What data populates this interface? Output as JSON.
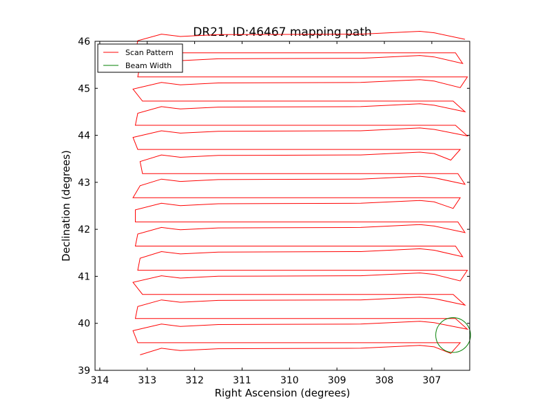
{
  "chart_data": {
    "type": "line",
    "title": "DR21, ID:46467 mapping path",
    "xlabel": "Right Ascension (degrees)",
    "ylabel": "Declination (degrees)",
    "xlim": [
      314.1,
      306.2
    ],
    "ylim": [
      39,
      46
    ],
    "x_inverted": true,
    "xticks": [
      314,
      313,
      312,
      311,
      310,
      309,
      308,
      307
    ],
    "xtick_labels": [
      "314",
      "313",
      "312",
      "311",
      "310",
      "309",
      "308",
      "307"
    ],
    "yticks": [
      39,
      40,
      41,
      42,
      43,
      44,
      45,
      46
    ],
    "ytick_labels": [
      "39",
      "40",
      "41",
      "42",
      "43",
      "44",
      "45",
      "46"
    ],
    "grid": false,
    "legend_position": "top-left",
    "scan_rows": {
      "dec_start": 39.33,
      "dec_step": 0.257,
      "count": 27,
      "west_edge_ra": [
        313.15,
        313.2,
        313.3,
        313.25,
        313.2,
        313.1,
        313.3,
        313.2,
        313.15,
        313.25,
        313.2,
        313.25,
        313.25,
        313.3,
        313.15,
        313.1
      ],
      "east_edge_ra": [
        306.6,
        306.4,
        306.25,
        306.5,
        306.3,
        306.55,
        306.4,
        306.25,
        306.35,
        306.5,
        306.3,
        306.45,
        306.55,
        306.4,
        306.3,
        306.45
      ]
    },
    "series": [
      {
        "name": "Scan Pattern",
        "color": "#ff0000",
        "kind": "path"
      },
      {
        "name": "Beam Width",
        "color": "#008000",
        "kind": "circle",
        "center": [
          306.55,
          39.75
        ],
        "radius": 0.37
      }
    ]
  }
}
